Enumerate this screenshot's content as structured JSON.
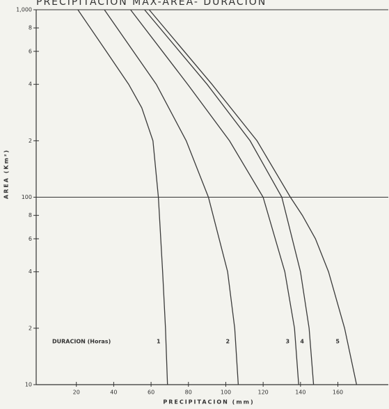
{
  "chart_data": {
    "type": "line",
    "title": "PRECIPITACION  MAX-AREA- DURACION",
    "x_label": "PRECIPITACION (mm)",
    "y_label": "AREA (Km²)",
    "annotation": "DURACION (Horas)",
    "log_y": true,
    "reference_line": 100,
    "color": "#3a3a3a",
    "xlim": [
      -1.5,
      187
    ],
    "ylim": [
      10,
      1000
    ],
    "xticks": [
      20,
      40,
      60,
      80,
      100,
      120,
      140,
      160
    ],
    "yticks": [
      10,
      {
        "value": 20,
        "label": "2"
      },
      {
        "value": 40,
        "label": "4"
      },
      {
        "value": 60,
        "label": "6"
      },
      {
        "value": 80,
        "label": "8"
      },
      100,
      {
        "value": 200,
        "label": "2"
      },
      {
        "value": 400,
        "label": "4"
      },
      {
        "value": 600,
        "label": "6"
      },
      {
        "value": 800,
        "label": "8"
      },
      {
        "value": 1000,
        "label": "1,000"
      }
    ],
    "series": [
      {
        "name": "1",
        "x": [
          68.8,
          67.7,
          66.2,
          63.9,
          61,
          55,
          48,
          36,
          20.8
        ],
        "values": [
          10,
          20,
          40,
          100,
          200,
          300,
          400,
          600,
          1000
        ]
      },
      {
        "name": "2",
        "x": [
          106.7,
          104.8,
          101,
          90.7,
          78.8,
          62.8,
          35
        ],
        "values": [
          10,
          20,
          40,
          100,
          200,
          400,
          1000
        ]
      },
      {
        "name": "3",
        "x": [
          139,
          136.8,
          131.6,
          120,
          102,
          79.6,
          49
        ],
        "values": [
          10,
          20,
          40,
          100,
          200,
          400,
          1000
        ]
      },
      {
        "name": "4",
        "x": [
          147,
          144.6,
          140,
          130,
          113,
          90,
          56.5
        ],
        "values": [
          10,
          20,
          40,
          100,
          200,
          400,
          1000
        ]
      },
      {
        "name": "5",
        "x": [
          170,
          163.6,
          155,
          148,
          141,
          134.6,
          116.7,
          92.6,
          59
        ],
        "values": [
          10,
          20,
          40,
          60,
          80,
          100,
          200,
          400,
          1000
        ]
      }
    ]
  }
}
